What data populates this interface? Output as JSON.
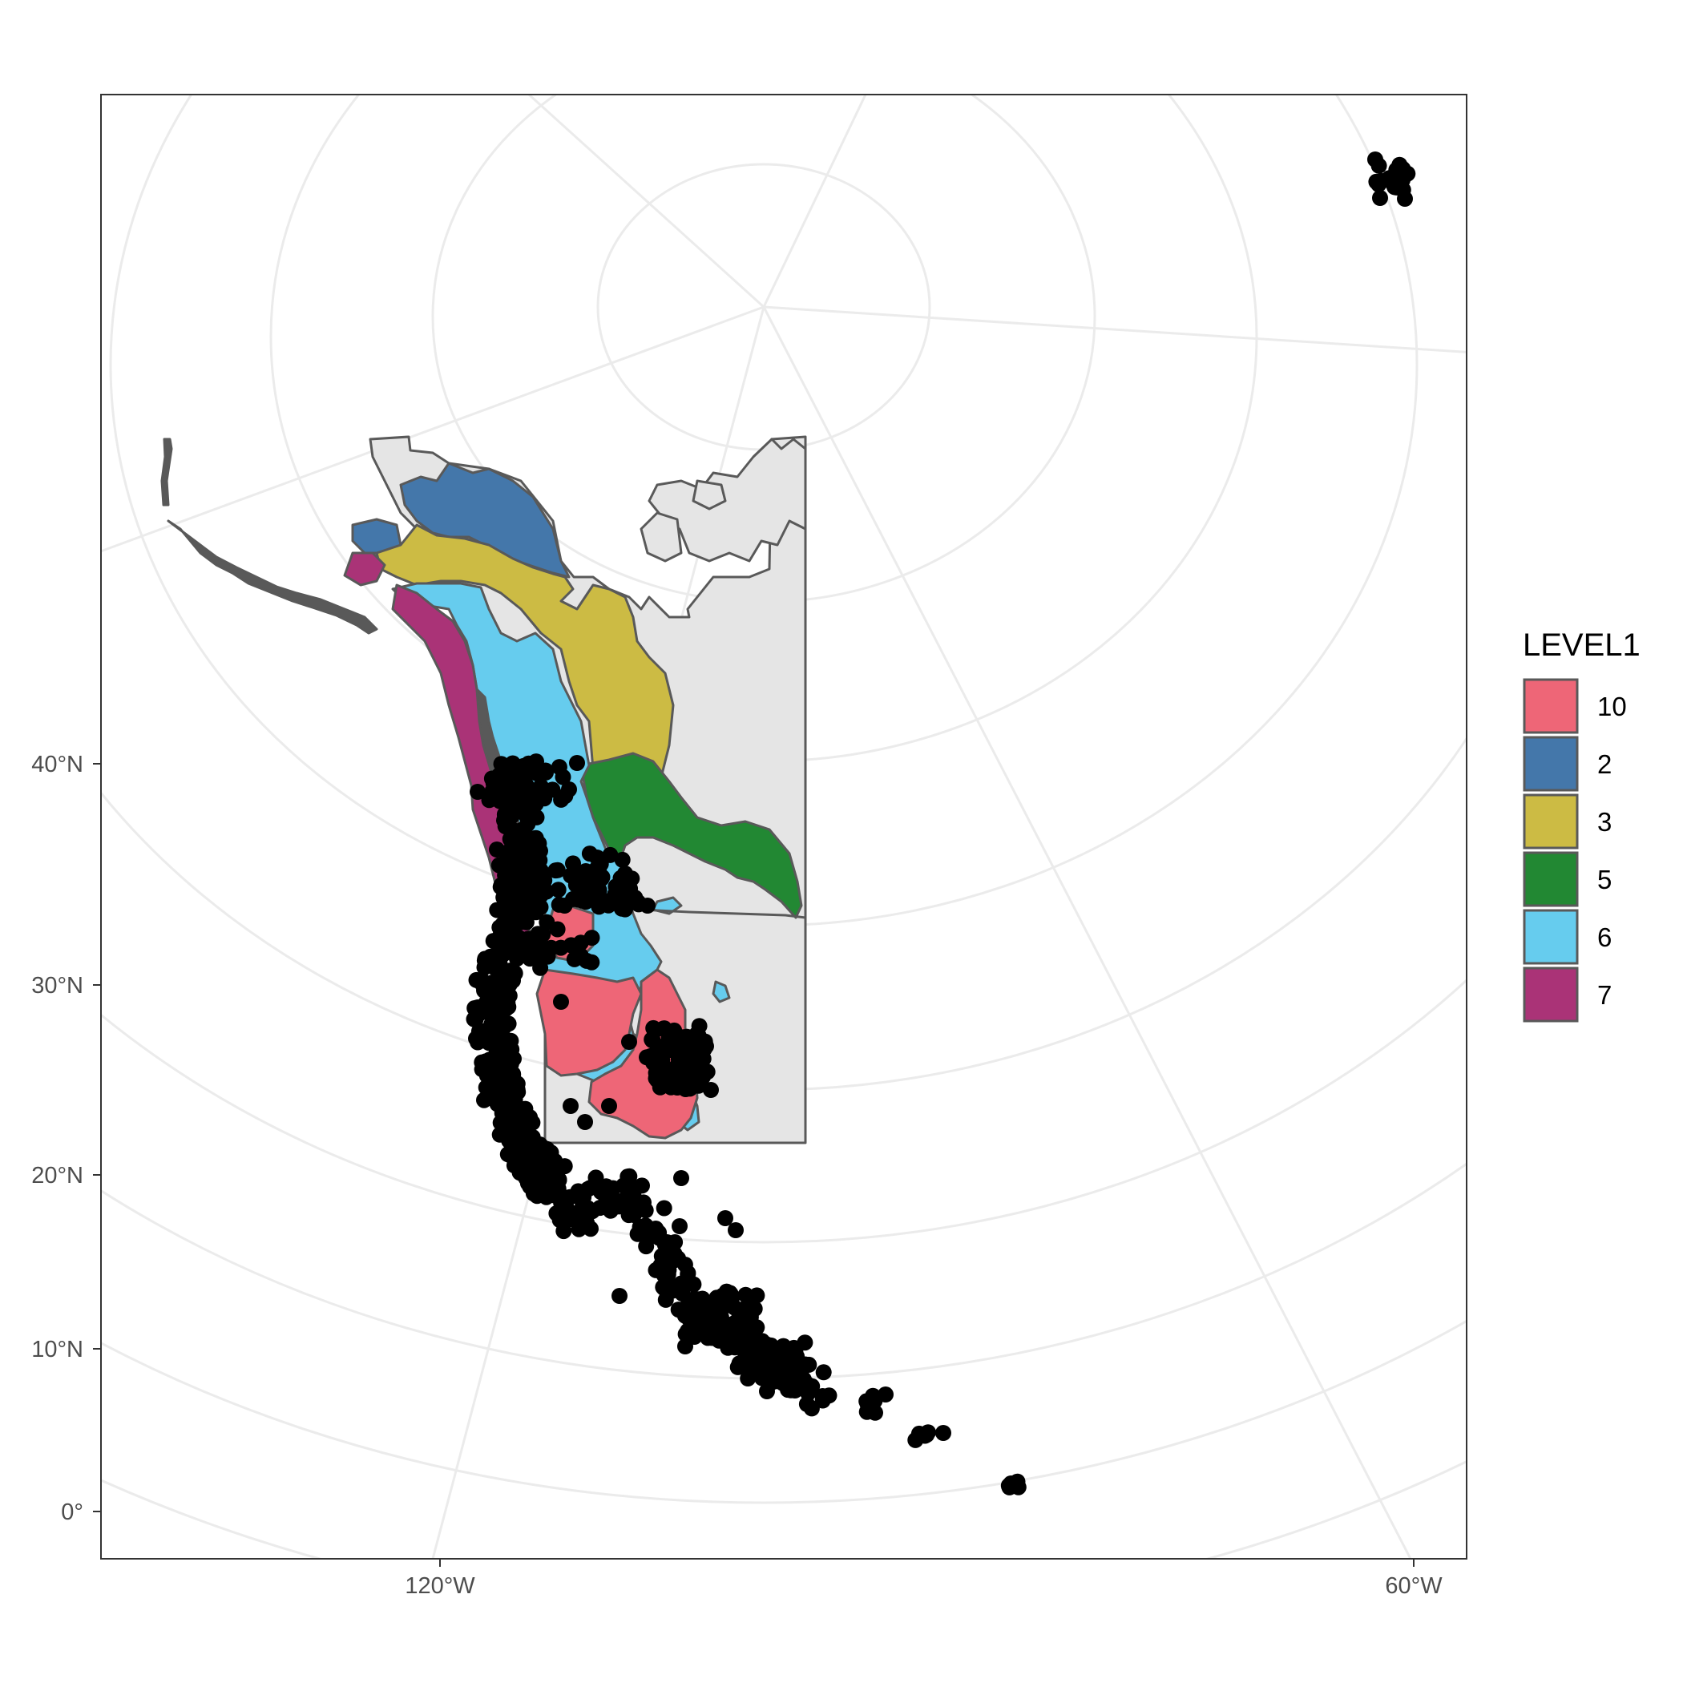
{
  "chart_data": {
    "type": "map",
    "projection": "polar",
    "y_ticks": [
      "40°N",
      "30°N",
      "20°N",
      "10°N",
      "0°"
    ],
    "x_ticks": [
      "120°W",
      "60°W"
    ],
    "legend": {
      "title": "LEVEL1",
      "placement": "right",
      "items": [
        {
          "label": "10",
          "color": "#EE6677"
        },
        {
          "label": "2",
          "color": "#4477AA"
        },
        {
          "label": "3",
          "color": "#CCBB44"
        },
        {
          "label": "5",
          "color": "#228833"
        },
        {
          "label": "6",
          "color": "#66CCEE"
        },
        {
          "label": "7",
          "color": "#AA3377"
        }
      ]
    },
    "base_color": "#e5e5e5",
    "border_color": "#595959",
    "point_color": "#000000",
    "grid": true
  }
}
